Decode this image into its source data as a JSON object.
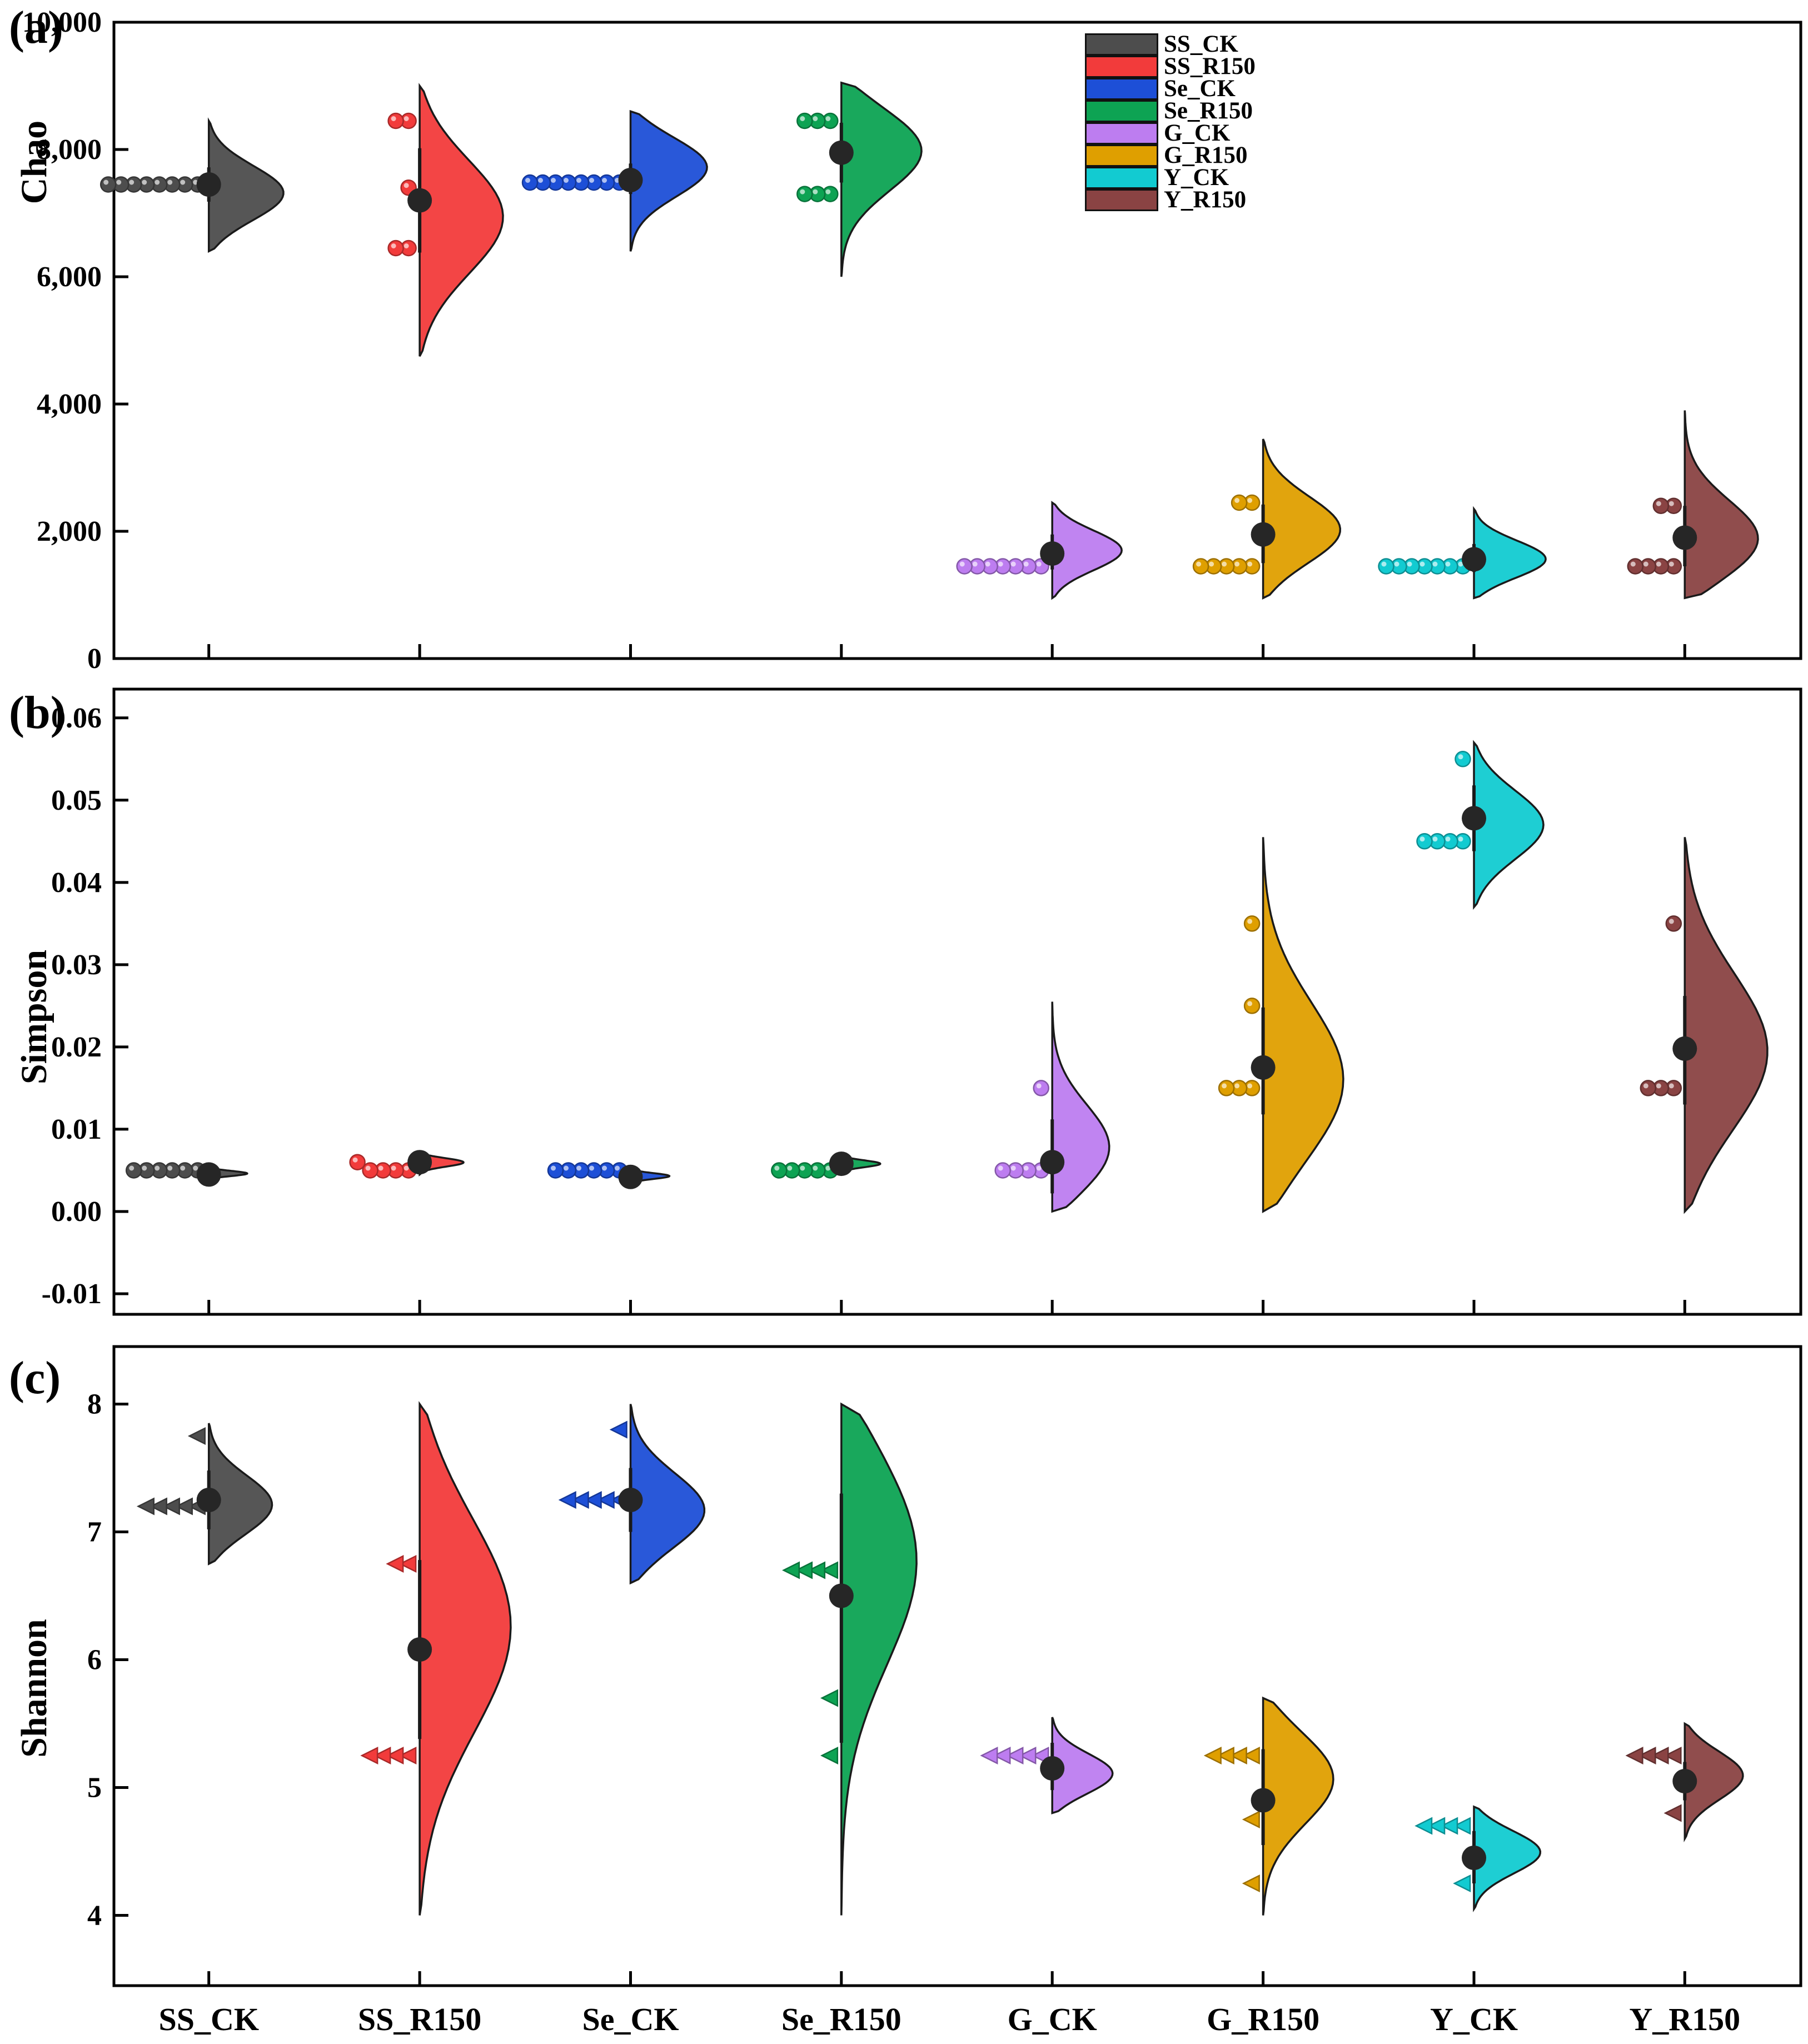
{
  "x_axis": {
    "categories": [
      "SS_CK",
      "SS_R150",
      "Se_CK",
      "Se_R150",
      "G_CK",
      "G_R150",
      "Y_CK",
      "Y_R150"
    ]
  },
  "legend": {
    "items": [
      {
        "label": "SS_CK",
        "color": "#4d4d4d"
      },
      {
        "label": "SS_R150",
        "color": "#f23b3b"
      },
      {
        "label": "Se_CK",
        "color": "#1d4fd7"
      },
      {
        "label": "Se_R150",
        "color": "#0da353"
      },
      {
        "label": "G_CK",
        "color": "#bd7df0"
      },
      {
        "label": "G_R150",
        "color": "#df9f00"
      },
      {
        "label": "Y_CK",
        "color": "#12cbd1"
      },
      {
        "label": "Y_R150",
        "color": "#8a4343"
      }
    ]
  },
  "chart_data": [
    {
      "type": "raincloud (half-violin + jittered points + mean with sd bar)",
      "panel_label": "(a)",
      "ylabel": "Chao",
      "ylim": [
        0,
        10000
      ],
      "yticks": [
        0,
        2000,
        4000,
        6000,
        8000,
        10000
      ],
      "ytick_labels": [
        "0",
        "2,000",
        "4,000",
        "6,000",
        "8,000",
        "10,000"
      ],
      "groups": [
        {
          "name": "SS_CK",
          "color": "#4d4d4d",
          "mean": 7450,
          "err": [
            7180,
            7720
          ],
          "points": [
            7450,
            7450,
            7450,
            7450,
            7450,
            7450,
            7450,
            7450
          ],
          "violin": {
            "min": 6400,
            "max": 8450,
            "peak": 7300,
            "width": 135
          }
        },
        {
          "name": "SS_R150",
          "color": "#f23b3b",
          "mean": 7200,
          "err": [
            6380,
            8020
          ],
          "points": [
            8450,
            8450,
            7400,
            6450,
            6450
          ],
          "violin": {
            "min": 4750,
            "max": 9000,
            "peak": 6950,
            "width": 150
          }
        },
        {
          "name": "Se_CK",
          "color": "#1d4fd7",
          "mean": 7520,
          "err": [
            7300,
            7780
          ],
          "points": [
            7480,
            7480,
            7480,
            7480,
            7480,
            7480,
            7480,
            7480
          ],
          "violin": {
            "min": 6400,
            "max": 8600,
            "peak": 7750,
            "width": 140
          }
        },
        {
          "name": "Se_R150",
          "color": "#0da353",
          "mean": 7950,
          "err": [
            7480,
            8420
          ],
          "points": [
            8450,
            8450,
            8450,
            7300,
            7300,
            7300
          ],
          "violin": {
            "min": 6000,
            "max": 9050,
            "peak": 8050,
            "width": 150
          }
        },
        {
          "name": "G_CK",
          "color": "#bd7df0",
          "mean": 1650,
          "err": [
            1400,
            1950
          ],
          "points": [
            1450,
            1450,
            1450,
            1450,
            1450,
            1450,
            1450
          ],
          "violin": {
            "min": 950,
            "max": 2450,
            "peak": 1700,
            "width": 125
          }
        },
        {
          "name": "G_R150",
          "color": "#df9f00",
          "mean": 1950,
          "err": [
            1500,
            2420
          ],
          "points": [
            2450,
            2450,
            1450,
            1450,
            1450,
            1450,
            1450
          ],
          "violin": {
            "min": 950,
            "max": 3450,
            "peak": 2000,
            "width": 140
          }
        },
        {
          "name": "Y_CK",
          "color": "#12cbd1",
          "mean": 1560,
          "err": [
            1360,
            1800
          ],
          "points": [
            1450,
            1450,
            1450,
            1450,
            1450,
            1450,
            1450
          ],
          "violin": {
            "min": 950,
            "max": 2350,
            "peak": 1550,
            "width": 130
          }
        },
        {
          "name": "Y_R150",
          "color": "#8a4343",
          "mean": 1900,
          "err": [
            1450,
            2400
          ],
          "points": [
            2400,
            2400,
            1450,
            1450,
            1450,
            1450
          ],
          "violin": {
            "min": 950,
            "max": 3900,
            "peak": 1800,
            "width": 140
          }
        }
      ]
    },
    {
      "type": "raincloud (half-violin + jittered points + mean with sd bar)",
      "panel_label": "(b)",
      "ylabel": "Simpson",
      "ylim": [
        -0.0125,
        0.0635
      ],
      "yticks": [
        -0.01,
        0.0,
        0.01,
        0.02,
        0.03,
        0.04,
        0.05,
        0.06
      ],
      "ytick_labels": [
        "-0.01",
        "0.00",
        "0.01",
        "0.02",
        "0.03",
        "0.04",
        "0.05",
        "0.06"
      ],
      "groups": [
        {
          "name": "SS_CK",
          "color": "#4d4d4d",
          "mean": 0.0045,
          "err": [
            0.004,
            0.005
          ],
          "points": [
            0.005,
            0.005,
            0.005,
            0.005,
            0.005,
            0.005
          ],
          "violin": {
            "min": 0.004,
            "max": 0.0055,
            "peak": 0.0046,
            "width": 70
          }
        },
        {
          "name": "SS_R150",
          "color": "#f23b3b",
          "mean": 0.006,
          "err": [
            0.005,
            0.0068
          ],
          "points": [
            0.005,
            0.005,
            0.005,
            0.005,
            0.006
          ],
          "violin": {
            "min": 0.0045,
            "max": 0.007,
            "peak": 0.006,
            "width": 80
          }
        },
        {
          "name": "Se_CK",
          "color": "#1d4fd7",
          "mean": 0.0042,
          "err": [
            0.0037,
            0.0048
          ],
          "points": [
            0.005,
            0.005,
            0.005,
            0.005,
            0.005,
            0.005
          ],
          "violin": {
            "min": 0.0035,
            "max": 0.0052,
            "peak": 0.0043,
            "width": 70
          }
        },
        {
          "name": "Se_R150",
          "color": "#0da353",
          "mean": 0.0058,
          "err": [
            0.0051,
            0.0064
          ],
          "points": [
            0.005,
            0.005,
            0.005,
            0.005,
            0.005
          ],
          "violin": {
            "min": 0.0048,
            "max": 0.0068,
            "peak": 0.0058,
            "width": 70
          }
        },
        {
          "name": "G_CK",
          "color": "#bd7df0",
          "mean": 0.006,
          "err": [
            0.0022,
            0.0112
          ],
          "points": [
            0.015,
            0.005,
            0.005,
            0.005,
            0.005
          ],
          "violin": {
            "min": 0.0,
            "max": 0.0255,
            "peak": 0.007,
            "width": 110
          }
        },
        {
          "name": "G_R150",
          "color": "#df9f00",
          "mean": 0.0175,
          "err": [
            0.0118,
            0.0248
          ],
          "points": [
            0.035,
            0.025,
            0.015,
            0.015,
            0.015
          ],
          "violin": {
            "min": 0.0,
            "max": 0.0455,
            "peak": 0.015,
            "width": 150
          }
        },
        {
          "name": "Y_CK",
          "color": "#12cbd1",
          "mean": 0.0478,
          "err": [
            0.0438,
            0.0518
          ],
          "points": [
            0.055,
            0.045,
            0.045,
            0.045,
            0.045
          ],
          "violin": {
            "min": 0.037,
            "max": 0.057,
            "peak": 0.047,
            "width": 125
          }
        },
        {
          "name": "Y_R150",
          "color": "#8a4343",
          "mean": 0.0198,
          "err": [
            0.013,
            0.0262
          ],
          "points": [
            0.035,
            0.015,
            0.015,
            0.015
          ],
          "violin": {
            "min": 0.0,
            "max": 0.0455,
            "peak": 0.019,
            "width": 150
          }
        }
      ]
    },
    {
      "type": "raincloud (half-violin + jittered triangle points + mean with sd bar)",
      "panel_label": "(c)",
      "ylabel": "Shannon",
      "ylim": [
        3.45,
        8.45
      ],
      "yticks": [
        4,
        5,
        6,
        7,
        8
      ],
      "ytick_labels": [
        "4",
        "5",
        "6",
        "7",
        "8"
      ],
      "groups": [
        {
          "name": "SS_CK",
          "color": "#4d4d4d",
          "mean": 7.25,
          "err": [
            7.02,
            7.48
          ],
          "points": [
            7.75,
            7.2,
            7.2,
            7.2,
            7.2,
            7.2
          ],
          "violin": {
            "min": 6.75,
            "max": 7.85,
            "peak": 7.2,
            "width": 115
          }
        },
        {
          "name": "SS_R150",
          "color": "#f23b3b",
          "mean": 6.08,
          "err": [
            5.38,
            6.78
          ],
          "points": [
            6.75,
            6.75,
            5.25,
            5.25,
            5.25,
            5.25
          ],
          "violin": {
            "min": 4.0,
            "max": 8.0,
            "peak": 6.3,
            "width": 165
          }
        },
        {
          "name": "Se_CK",
          "color": "#1d4fd7",
          "mean": 7.25,
          "err": [
            7.0,
            7.5
          ],
          "points": [
            7.8,
            7.25,
            7.25,
            7.25,
            7.25,
            7.25
          ],
          "violin": {
            "min": 6.6,
            "max": 8.0,
            "peak": 7.15,
            "width": 135
          }
        },
        {
          "name": "Se_R150",
          "color": "#0da353",
          "mean": 6.5,
          "err": [
            5.35,
            7.3
          ],
          "points": [
            6.7,
            6.7,
            6.7,
            6.7,
            5.7,
            5.25
          ],
          "violin": {
            "min": 4.0,
            "max": 8.0,
            "peak": 6.9,
            "width": 145
          }
        },
        {
          "name": "G_CK",
          "color": "#bd7df0",
          "mean": 5.15,
          "err": [
            4.98,
            5.35
          ],
          "points": [
            5.25,
            5.25,
            5.25,
            5.25,
            5.25
          ],
          "violin": {
            "min": 4.8,
            "max": 5.55,
            "peak": 5.1,
            "width": 110
          }
        },
        {
          "name": "G_R150",
          "color": "#df9f00",
          "mean": 4.9,
          "err": [
            4.55,
            5.3
          ],
          "points": [
            5.25,
            5.25,
            5.25,
            5.25,
            4.75,
            4.25
          ],
          "violin": {
            "min": 4.0,
            "max": 5.7,
            "peak": 5.1,
            "width": 130
          }
        },
        {
          "name": "Y_CK",
          "color": "#12cbd1",
          "mean": 4.45,
          "err": [
            4.25,
            4.66
          ],
          "points": [
            4.7,
            4.7,
            4.7,
            4.7,
            4.25
          ],
          "violin": {
            "min": 4.05,
            "max": 4.85,
            "peak": 4.5,
            "width": 120
          }
        },
        {
          "name": "Y_R150",
          "color": "#8a4343",
          "mean": 5.05,
          "err": [
            4.9,
            5.2
          ],
          "points": [
            5.25,
            5.25,
            5.25,
            5.25,
            4.8
          ],
          "violin": {
            "min": 4.6,
            "max": 5.5,
            "peak": 5.1,
            "width": 105
          }
        }
      ]
    }
  ]
}
